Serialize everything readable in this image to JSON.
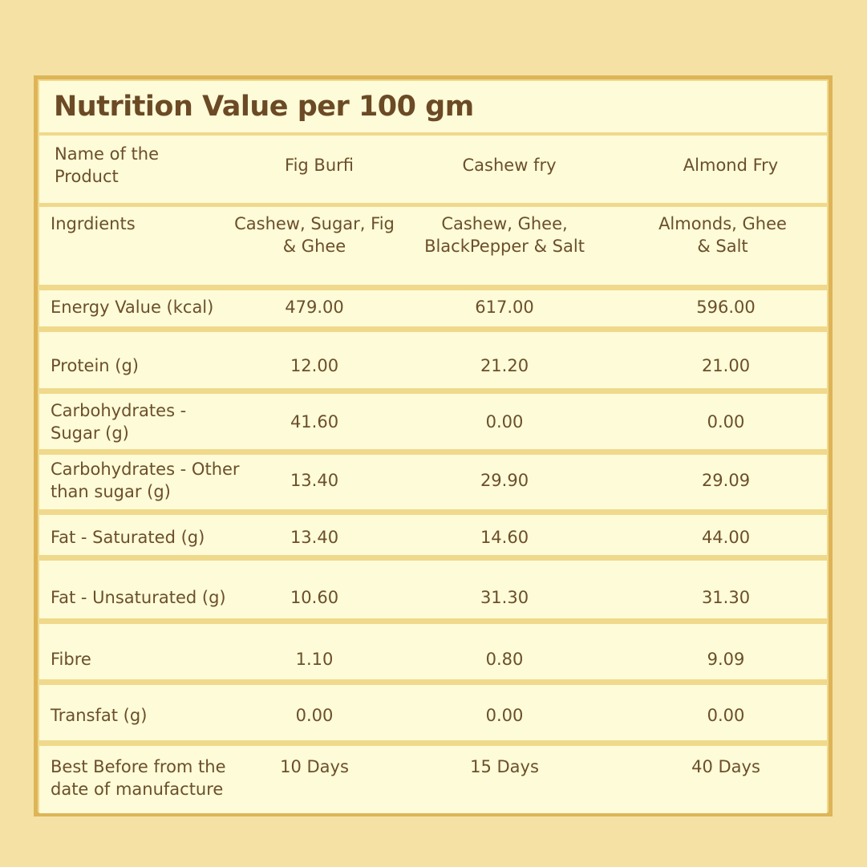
{
  "title": "Nutrition Value per 100 gm",
  "header": {
    "label_line1": "Name of the",
    "label_line2": "Product",
    "products": [
      "Fig Burfi",
      "Cashew fry",
      "Almond Fry"
    ]
  },
  "ingredients": {
    "label": "Ingrdients",
    "values": [
      [
        "Cashew, Sugar, Fig",
        "& Ghee"
      ],
      [
        "Cashew, Ghee,",
        "BlackPepper & Salt"
      ],
      [
        "Almonds, Ghee",
        "& Salt"
      ]
    ]
  },
  "rows": [
    {
      "label": [
        "Energy Value (kcal)"
      ],
      "values": [
        "479.00",
        "617.00",
        "596.00"
      ]
    },
    {
      "label": [
        "Protein (g)"
      ],
      "values": [
        "12.00",
        "21.20",
        "21.00"
      ]
    },
    {
      "label": [
        "Carbohydrates -",
        "Sugar (g)"
      ],
      "values": [
        "41.60",
        "0.00",
        "0.00"
      ]
    },
    {
      "label": [
        "Carbohydrates - Other",
        "than sugar (g)"
      ],
      "values": [
        "13.40",
        "29.90",
        "29.09"
      ]
    },
    {
      "label": [
        "Fat - Saturated (g)"
      ],
      "values": [
        "13.40",
        "14.60",
        "44.00"
      ]
    },
    {
      "label": [
        "Fat - Unsaturated (g)"
      ],
      "values": [
        "10.60",
        "31.30",
        "31.30"
      ]
    },
    {
      "label": [
        "Fibre"
      ],
      "values": [
        "1.10",
        "0.80",
        "9.09"
      ]
    },
    {
      "label": [
        "Transfat (g)"
      ],
      "values": [
        "0.00",
        "0.00",
        "0.00"
      ]
    },
    {
      "label": [
        "Best Before from the",
        "date of manufacture"
      ],
      "values": [
        "10 Days",
        "15 Days",
        "40 Days"
      ]
    }
  ],
  "colors": {
    "background": "#f5e1a4",
    "border": "#ddb457",
    "row_fill": "#fdfbd8",
    "separator": "#f0d98c",
    "text": "#6b4f2a"
  }
}
